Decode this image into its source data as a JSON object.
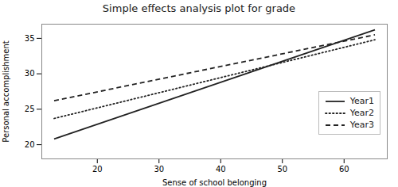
{
  "chart_data": {
    "type": "line",
    "title": "Simple effects analysis plot for grade",
    "xlabel": "Sense of school belonging",
    "ylabel": "Personal accomplishment",
    "x": [
      13,
      65
    ],
    "series": [
      {
        "name": "Year1",
        "color": "#222222",
        "line_style": "solid",
        "values": [
          20.8,
          36.2
        ]
      },
      {
        "name": "Year2",
        "color": "#222222",
        "line_style": "dotted",
        "values": [
          23.7,
          34.8
        ]
      },
      {
        "name": "Year3",
        "color": "#222222",
        "line_style": "dashed",
        "values": [
          26.2,
          35.5
        ]
      }
    ],
    "xlim": [
      11,
      67
    ],
    "ylim": [
      18,
      37
    ],
    "xticks": [
      20,
      30,
      40,
      50,
      60
    ],
    "yticks": [
      20,
      25,
      30,
      35
    ],
    "grid": false,
    "legend": "lower right"
  }
}
